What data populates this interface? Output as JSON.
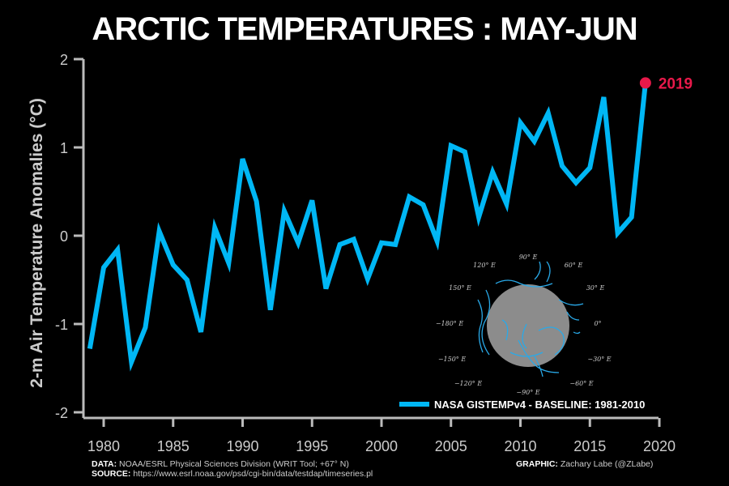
{
  "chart_data": {
    "type": "line",
    "title": "ARCTIC TEMPERATURES : MAY-JUN",
    "xlabel": "",
    "ylabel": "2-m Air Temperature Anomalies (°C)",
    "xlim": [
      1978,
      2020
    ],
    "ylim": [
      -2,
      2
    ],
    "xticks": [
      1980,
      1985,
      1990,
      1995,
      2000,
      2005,
      2010,
      2015,
      2020
    ],
    "yticks": [
      -2,
      -1,
      0,
      1,
      2
    ],
    "grid": false,
    "legend": {
      "label": "NASA GISTEMPv4 - BASELINE: 1981-2010",
      "placement": "bottom-right"
    },
    "line_color": "#00b7f5",
    "highlight": {
      "label": "2019",
      "x": 2019,
      "y": 1.73,
      "color": "#e8194a"
    },
    "series": [
      {
        "name": "NASA GISTEMPv4 - BASELINE: 1981-2010",
        "x": [
          1979,
          1980,
          1981,
          1982,
          1983,
          1984,
          1985,
          1986,
          1987,
          1988,
          1989,
          1990,
          1991,
          1992,
          1993,
          1994,
          1995,
          1996,
          1997,
          1998,
          1999,
          2000,
          2001,
          2002,
          2003,
          2004,
          2005,
          2006,
          2007,
          2008,
          2009,
          2010,
          2011,
          2012,
          2013,
          2014,
          2015,
          2016,
          2017,
          2018,
          2019
        ],
        "values": [
          -1.28,
          -0.36,
          -0.16,
          -1.43,
          -1.04,
          0.05,
          -0.33,
          -0.5,
          -1.09,
          0.09,
          -0.31,
          0.87,
          0.39,
          -0.84,
          0.28,
          -0.08,
          0.4,
          -0.6,
          -0.1,
          -0.04,
          -0.49,
          -0.08,
          -0.1,
          0.44,
          0.35,
          -0.06,
          1.02,
          0.95,
          0.21,
          0.72,
          0.36,
          1.28,
          1.07,
          1.39,
          0.79,
          0.6,
          0.77,
          1.57,
          0.03,
          0.21,
          1.73
        ]
      }
    ]
  },
  "inset_map": {
    "labels": [
      "90° E",
      "60° E",
      "30° E",
      "0°",
      "−30° E",
      "−60° E",
      "−90° E",
      "−120° E",
      "−150° E",
      "−180° E",
      "150° E",
      "120° E"
    ]
  },
  "footer": {
    "data_label": "DATA:",
    "data_text": " NOAA/ESRL Physical Sciences Division (WRIT Tool; +67° N)",
    "source_label": "SOURCE:",
    "source_text": " https://www.esrl.noaa.gov/psd/cgi-bin/data/testdap/timeseries.pl",
    "graphic_label": "GRAPHIC:",
    "graphic_text": " Zachary Labe (@ZLabe)"
  }
}
